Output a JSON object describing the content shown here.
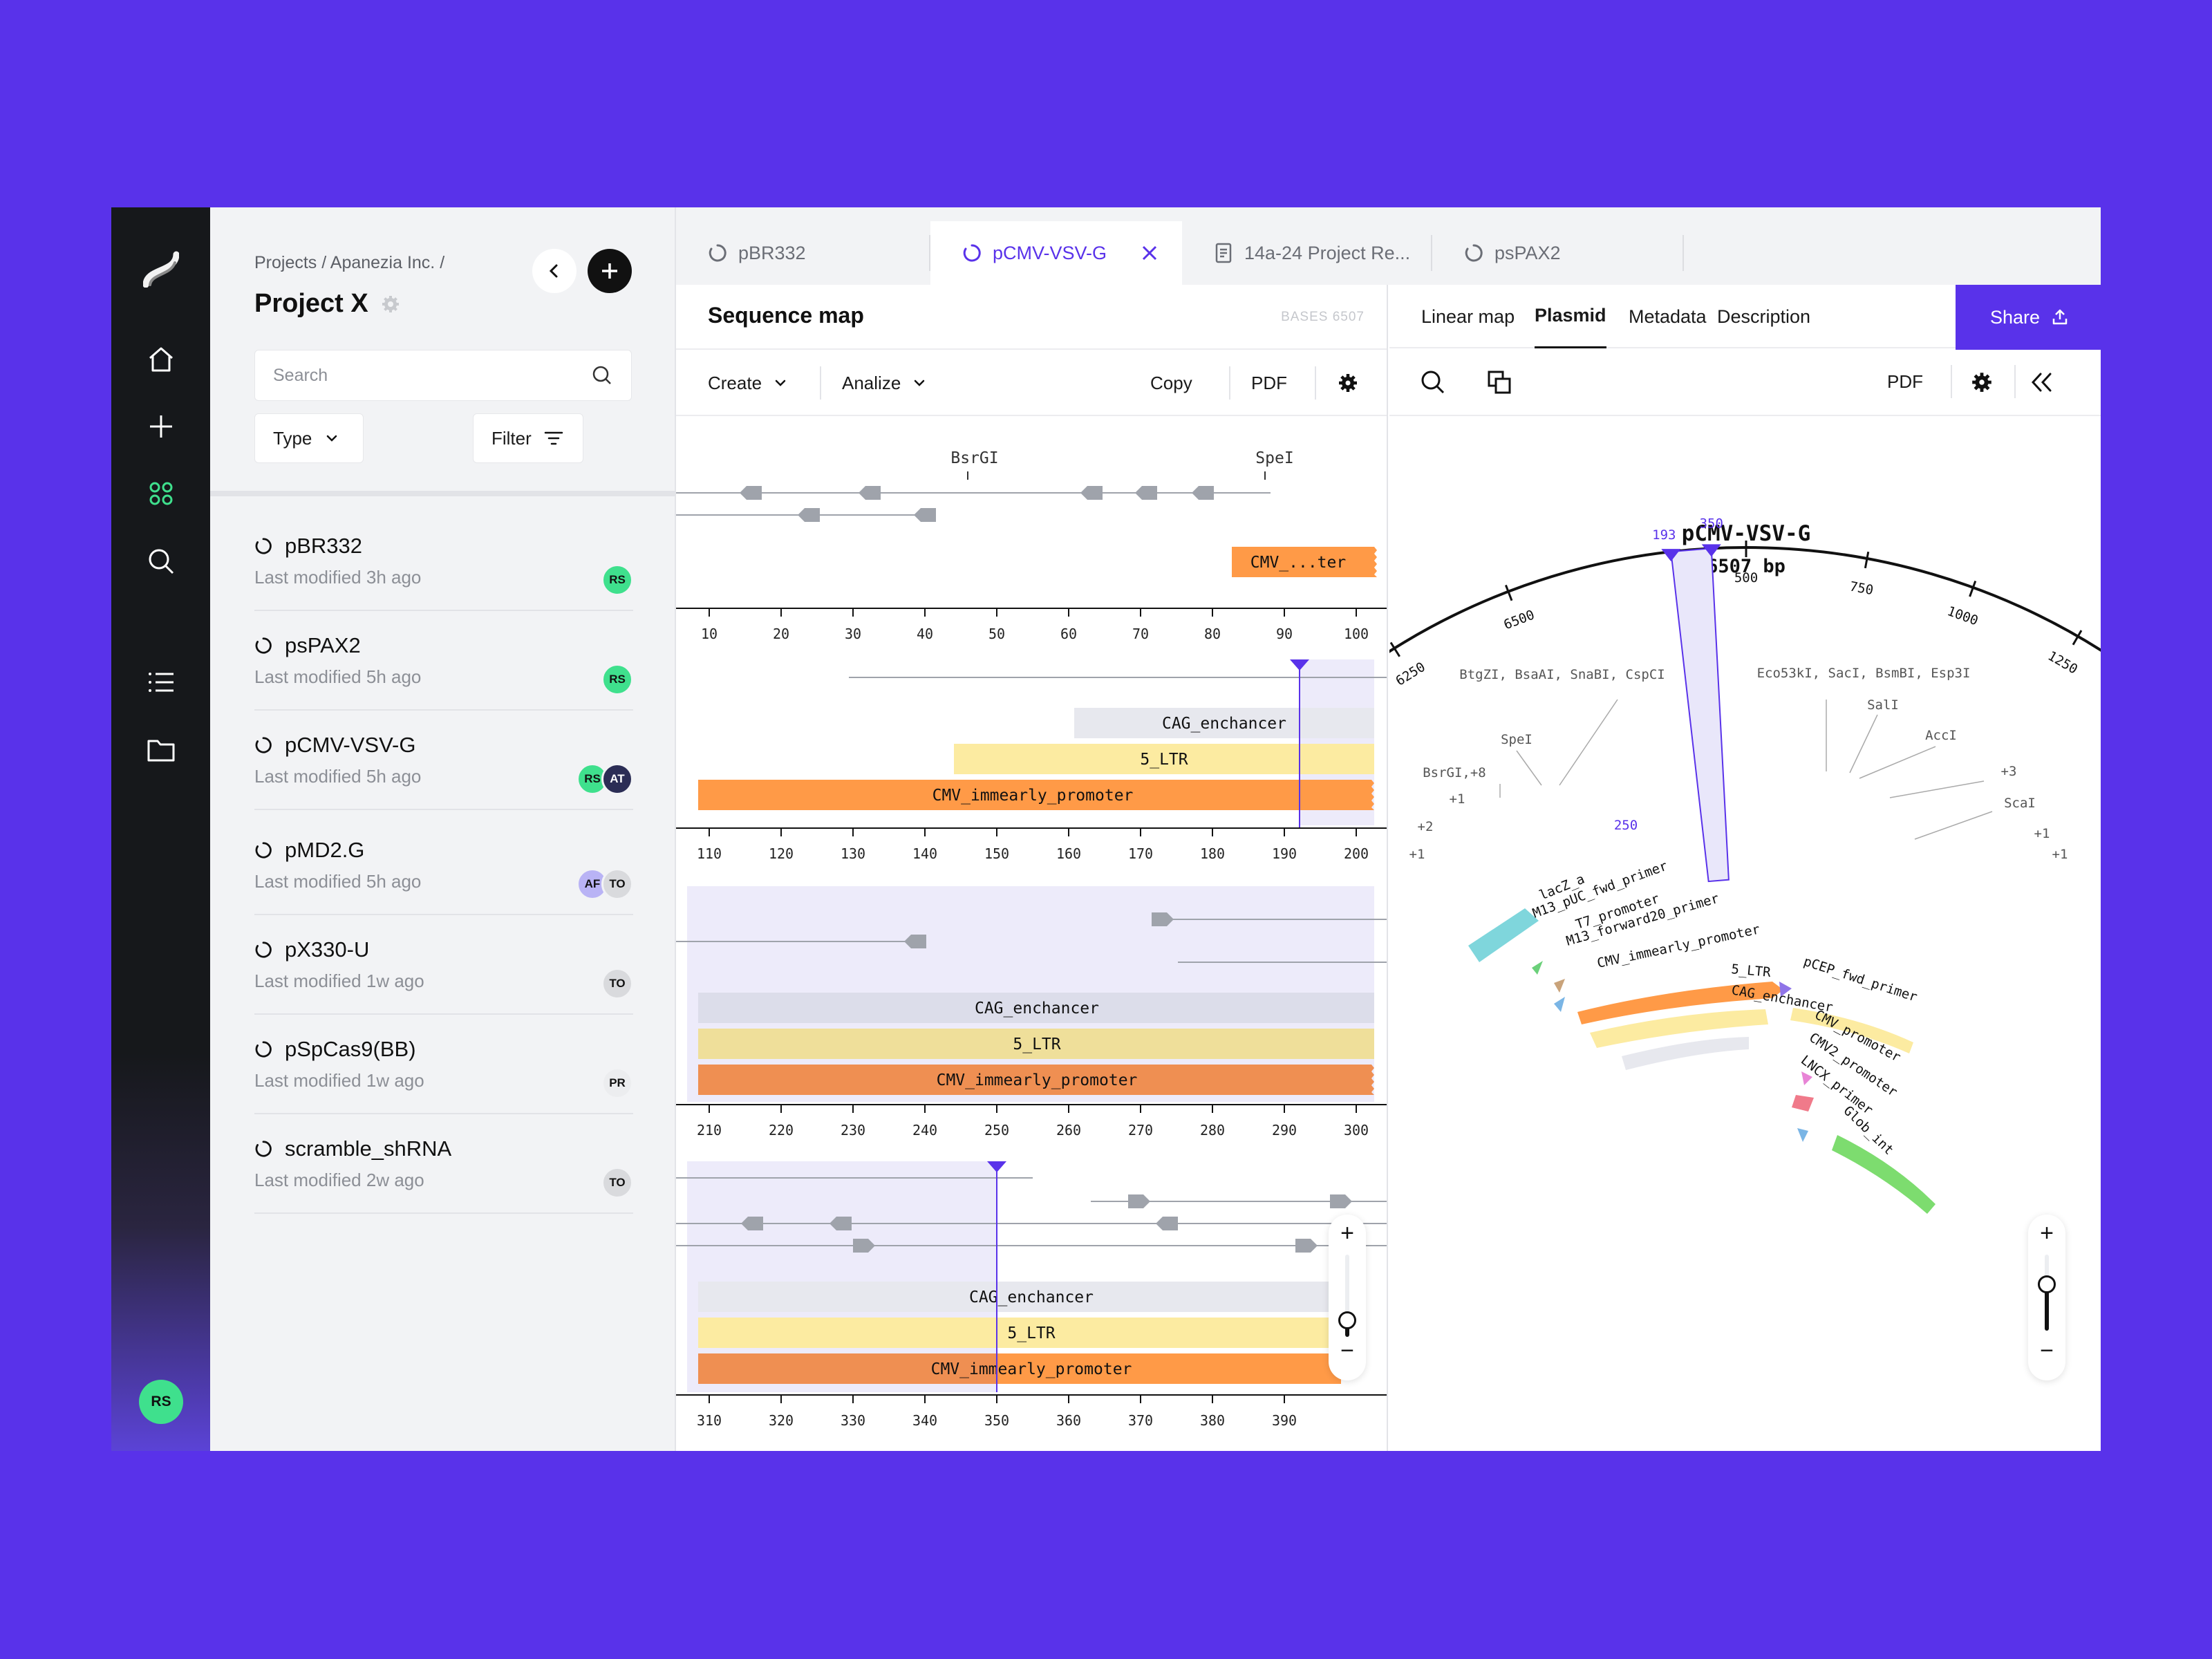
{
  "rail": {
    "icons": [
      "home-icon",
      "plus-icon",
      "grid-icon",
      "search-icon",
      "list-icon",
      "folder-icon"
    ],
    "user_initials": "RS"
  },
  "sidebar": {
    "breadcrumb": "Projects / Apanezia Inc. /",
    "title": "Project X",
    "search_placeholder": "Search",
    "type_label": "Type",
    "filter_label": "Filter",
    "projects": [
      {
        "name": "pBR332",
        "modified": "Last modified 3h ago",
        "avatars": [
          {
            "initials": "RS",
            "color": "#3FE08D"
          }
        ]
      },
      {
        "name": "psPAX2",
        "modified": "Last modified 5h ago",
        "avatars": [
          {
            "initials": "RS",
            "color": "#3FE08D"
          }
        ]
      },
      {
        "name": "pCMV-VSV-G",
        "modified": "Last modified 5h ago",
        "avatars": [
          {
            "initials": "RS",
            "color": "#3FE08D"
          },
          {
            "initials": "AT",
            "color": "#2B2D55"
          }
        ]
      },
      {
        "name": "pMD2.G",
        "modified": "Last modified 5h ago",
        "avatars": [
          {
            "initials": "AF",
            "color": "#B9B3F5"
          },
          {
            "initials": "TO",
            "color": "#D9DADD"
          }
        ]
      },
      {
        "name": "pX330-U",
        "modified": "Last modified 1w ago",
        "avatars": [
          {
            "initials": "TO",
            "color": "#D9DADD"
          }
        ]
      },
      {
        "name": "pSpCas9(BB)",
        "modified": "Last modified 1w ago",
        "avatars": [
          {
            "initials": "PR",
            "color": "#ECEDEF"
          }
        ]
      },
      {
        "name": "scramble_shRNA",
        "modified": "Last modified 2w ago",
        "avatars": [
          {
            "initials": "TO",
            "color": "#D9DADD"
          }
        ]
      }
    ]
  },
  "tabs": [
    {
      "label": "pBR332",
      "icon": "ring-icon"
    },
    {
      "label": "pCMV-VSV-G",
      "icon": "ring-icon",
      "active": true
    },
    {
      "label": "14a-24 Project Re...",
      "icon": "document-icon"
    },
    {
      "label": "psPAX2",
      "icon": "ring-icon"
    }
  ],
  "sequence_map": {
    "title": "Sequence map",
    "bases": "BASES 6507",
    "create_label": "Create",
    "analize_label": "Analize",
    "copy_label": "Copy",
    "pdf_label": "PDF",
    "rows": [
      {
        "ticks": [
          "10",
          "20",
          "30",
          "40",
          "50",
          "60",
          "70",
          "80",
          "90",
          "100"
        ],
        "sites": [
          "BsrGI",
          "SpeI"
        ],
        "features": [
          "CMV_...ter"
        ]
      },
      {
        "ticks": [
          "110",
          "120",
          "130",
          "140",
          "150",
          "160",
          "170",
          "180",
          "190",
          "200"
        ],
        "features": [
          "CAG_enchancer",
          "5_LTR",
          "CMV_immearly_promoter"
        ]
      },
      {
        "ticks": [
          "210",
          "220",
          "230",
          "240",
          "250",
          "260",
          "270",
          "280",
          "290",
          "300"
        ],
        "features": [
          "CAG_enchancer",
          "5_LTR",
          "CMV_immearly_promoter"
        ]
      },
      {
        "ticks": [
          "310",
          "320",
          "330",
          "340",
          "350",
          "360",
          "370",
          "380",
          "390"
        ],
        "features": [
          "CAG_enchancer",
          "5_LTR",
          "CMV_immearly_promoter"
        ]
      }
    ]
  },
  "plasmid": {
    "tabs": [
      "Linear map",
      "Plasmid",
      "Metadata",
      "Description"
    ],
    "active_tab": "Plasmid",
    "share_label": "Share",
    "pdf_label": "PDF",
    "name": "pCMV-VSV-G",
    "length": "6507 bp",
    "ticks": [
      "6250",
      "6500",
      "500",
      "750",
      "1000",
      "1250"
    ],
    "selection_labels": [
      "193",
      "350",
      "250"
    ],
    "enzymes": [
      "BtgZI, BsaAI, SnaBI, CspCI",
      "Eco53kI, SacI, BsmBI, Esp3I",
      "SalI",
      "AccI",
      "SpeI",
      "BsrGI,+8",
      "+1",
      "+2",
      "+1",
      "+3",
      "ScaI",
      "+1",
      "+1"
    ],
    "features": [
      "lacZ_a",
      "M13_pUC_fwd_primer",
      "T7_promoter",
      "M13_forward20_primer",
      "CMV_immearly_promoter",
      "pCEP_fwd_primer",
      "5_LTR",
      "CAG_enchancer",
      "CMV_promoter",
      "CMV2_promoter",
      "LNCX_primer",
      "Glob_int"
    ]
  },
  "colors": {
    "accent": "#5932EA",
    "green": "#3FE08D",
    "orange": "#FF9A47",
    "yellow": "#FCEBA1",
    "lavender": "#E7E8F3"
  }
}
